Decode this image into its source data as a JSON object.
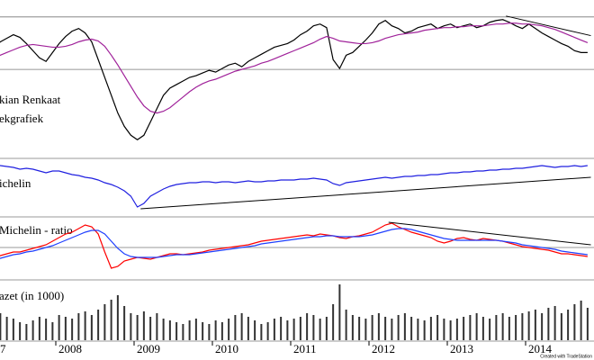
{
  "chart_data": [
    {
      "type": "line",
      "annotations": [
        "kian Renkaat",
        "ekgrafiek"
      ],
      "ylim": [
        0,
        175
      ],
      "hlines": [
        158,
        99
      ],
      "trendline": {
        "x": [
          81,
          94
        ],
        "values": [
          159,
          137
        ]
      },
      "series": [
        {
          "color": "#000000",
          "values": [
            122,
            126,
            124,
            130,
            134,
            138,
            135,
            128,
            120,
            112,
            108,
            118,
            128,
            136,
            142,
            145,
            140,
            130,
            110,
            90,
            70,
            50,
            35,
            25,
            20,
            25,
            40,
            55,
            70,
            78,
            82,
            86,
            90,
            92,
            95,
            98,
            96,
            100,
            104,
            106,
            102,
            108,
            112,
            116,
            120,
            124,
            126,
            128,
            132,
            138,
            142,
            148,
            150,
            146,
            110,
            100,
            115,
            118,
            125,
            132,
            140,
            150,
            154,
            148,
            145,
            140,
            142,
            146,
            148,
            150,
            145,
            148,
            150,
            146,
            148,
            150,
            146,
            148,
            152,
            154,
            155,
            152,
            148,
            145,
            150,
            145,
            140,
            136,
            132,
            128,
            125,
            120,
            118,
            118
          ]
        },
        {
          "color": "#a0229a",
          "values": [
            106,
            109,
            112,
            115,
            118,
            121,
            124,
            126,
            127,
            126,
            125,
            124,
            124,
            125,
            127,
            130,
            132,
            133,
            131,
            125,
            115,
            104,
            92,
            80,
            68,
            58,
            52,
            50,
            52,
            56,
            62,
            68,
            74,
            79,
            83,
            86,
            88,
            91,
            94,
            97,
            99,
            101,
            103,
            106,
            108,
            111,
            114,
            117,
            120,
            123,
            126,
            129,
            133,
            136,
            134,
            131,
            130,
            129,
            128,
            128,
            129,
            131,
            134,
            136,
            138,
            139,
            140,
            141,
            143,
            144,
            145,
            146,
            146,
            147,
            147,
            148,
            148,
            148,
            149,
            150,
            150,
            151,
            151,
            150,
            150,
            149,
            148,
            146,
            144,
            141,
            138,
            135,
            132,
            129
          ]
        }
      ]
    },
    {
      "type": "line",
      "annotations": [
        "ichelin"
      ],
      "ylim": [
        0,
        62
      ],
      "trendline": {
        "x": [
          25,
          94
        ],
        "values": [
          8,
          43
        ]
      },
      "series": [
        {
          "color": "#2020e0",
          "values": [
            57,
            58,
            57,
            56,
            55,
            54,
            52,
            53,
            52,
            50,
            48,
            50,
            50,
            48,
            46,
            45,
            43,
            42,
            40,
            37,
            35,
            32,
            28,
            22,
            10,
            14,
            22,
            26,
            30,
            33,
            35,
            36,
            37,
            37,
            38,
            38,
            37,
            38,
            38,
            37,
            38,
            39,
            38,
            38,
            39,
            39,
            40,
            40,
            40,
            41,
            41,
            42,
            41,
            40,
            36,
            34,
            37,
            38,
            39,
            40,
            41,
            42,
            43,
            42,
            43,
            44,
            44,
            45,
            45,
            46,
            46,
            47,
            48,
            48,
            49,
            49,
            50,
            50,
            51,
            51,
            52,
            52,
            53,
            53,
            54,
            55,
            56,
            55,
            54,
            55,
            55,
            56,
            55,
            56
          ]
        }
      ]
    },
    {
      "type": "line",
      "annotations": [
        "Michelin - ratio"
      ],
      "ylim": [
        0,
        67
      ],
      "hlines": [
        35
      ],
      "trendline": {
        "x": [
          63,
          94
        ],
        "values": [
          63,
          38
        ]
      },
      "series": [
        {
          "color": "#ff0000",
          "values": [
            20,
            22,
            24,
            26,
            28,
            30,
            30,
            32,
            34,
            36,
            38,
            42,
            46,
            50,
            52,
            56,
            60,
            58,
            50,
            30,
            12,
            14,
            20,
            22,
            24,
            23,
            22,
            24,
            26,
            28,
            28,
            27,
            28,
            29,
            30,
            32,
            33,
            34,
            35,
            36,
            37,
            38,
            40,
            42,
            43,
            44,
            45,
            46,
            47,
            48,
            49,
            48,
            50,
            49,
            48,
            46,
            45,
            47,
            48,
            50,
            52,
            56,
            60,
            62,
            58,
            55,
            52,
            50,
            48,
            46,
            42,
            40,
            42,
            45,
            46,
            44,
            43,
            45,
            44,
            43,
            42,
            40,
            38,
            36,
            35,
            34,
            33,
            32,
            30,
            28,
            28,
            27,
            26,
            25
          ]
        },
        {
          "color": "#1f3fff",
          "values": [
            18,
            19,
            21,
            23,
            25,
            27,
            28,
            30,
            31,
            33,
            35,
            37,
            40,
            43,
            46,
            49,
            52,
            54,
            54,
            50,
            42,
            34,
            28,
            25,
            24,
            24,
            24,
            24,
            25,
            26,
            27,
            27,
            27,
            28,
            29,
            30,
            31,
            32,
            33,
            34,
            35,
            36,
            37,
            39,
            40,
            41,
            42,
            43,
            44,
            45,
            46,
            47,
            47,
            48,
            48,
            47,
            47,
            47,
            47,
            48,
            49,
            51,
            53,
            55,
            56,
            56,
            55,
            53,
            51,
            49,
            47,
            45,
            44,
            43,
            43,
            43,
            43,
            43,
            43,
            43,
            42,
            41,
            40,
            38,
            37,
            36,
            35,
            34,
            33,
            31,
            30,
            29,
            28,
            27
          ]
        }
      ]
    },
    {
      "type": "bar",
      "annotations": [
        "azet (in 1000)"
      ],
      "ylim": [
        0,
        66
      ],
      "color": "#333333",
      "categories": [
        "7",
        null,
        null,
        null,
        null,
        null,
        null,
        null,
        null,
        null,
        null,
        null,
        "2008",
        null,
        null,
        null,
        null,
        null,
        null,
        null,
        null,
        null,
        null,
        null,
        "2009",
        null,
        null,
        null,
        null,
        null,
        null,
        null,
        null,
        null,
        null,
        null,
        "2010",
        null,
        null,
        null,
        null,
        null,
        null,
        null,
        null,
        null,
        null,
        null,
        "2011",
        null,
        null,
        null,
        null,
        null,
        null,
        null,
        null,
        null,
        null,
        null,
        "2012",
        null,
        null,
        null,
        null,
        null,
        null,
        null,
        null,
        null,
        null,
        null,
        "2013",
        null,
        null,
        null,
        null,
        null,
        null,
        null,
        null,
        null,
        null,
        null,
        "2014",
        null,
        null,
        null,
        null,
        null,
        null,
        null,
        null,
        null
      ],
      "values": [
        25,
        28,
        22,
        30,
        26,
        24,
        20,
        18,
        22,
        26,
        24,
        20,
        28,
        26,
        24,
        30,
        32,
        28,
        34,
        40,
        45,
        50,
        38,
        30,
        28,
        32,
        26,
        30,
        24,
        22,
        20,
        18,
        22,
        24,
        20,
        18,
        22,
        20,
        24,
        28,
        30,
        26,
        22,
        18,
        20,
        24,
        26,
        22,
        24,
        26,
        30,
        28,
        24,
        26,
        40,
        62,
        34,
        28,
        26,
        24,
        28,
        30,
        26,
        24,
        28,
        30,
        26,
        24,
        22,
        26,
        28,
        24,
        22,
        24,
        26,
        28,
        30,
        26,
        24,
        28,
        30,
        26,
        28,
        30,
        32,
        34,
        30,
        36,
        38,
        30,
        34,
        40,
        44,
        36
      ]
    }
  ],
  "credit": "Created with TradeStation"
}
